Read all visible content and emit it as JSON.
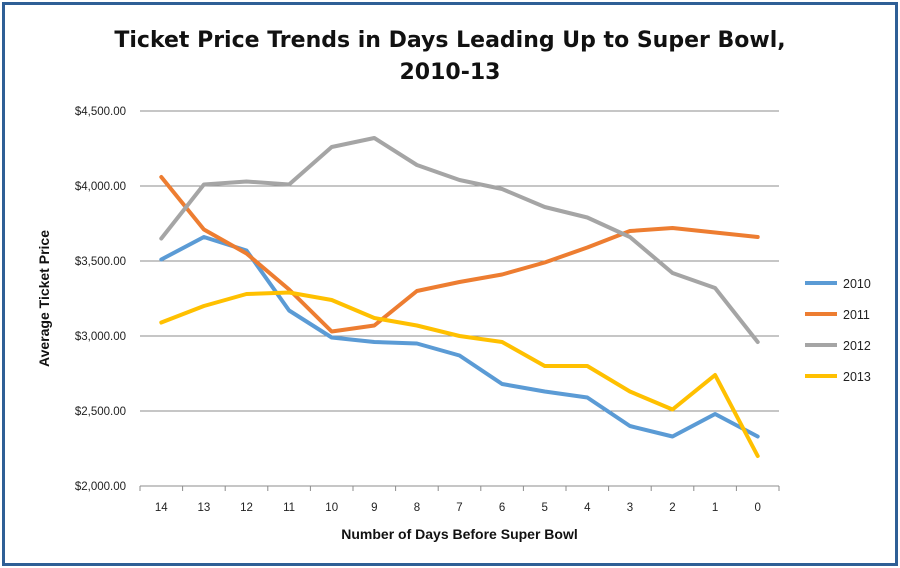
{
  "chart_data": {
    "type": "line",
    "title_line1": "Ticket Price Trends in Days Leading Up to Super Bowl,",
    "title_line2": "2010-13",
    "xlabel": "Number of Days Before Super Bowl",
    "ylabel": "Average Ticket Price",
    "categories": [
      "14",
      "13",
      "12",
      "11",
      "10",
      "9",
      "8",
      "7",
      "6",
      "5",
      "4",
      "3",
      "2",
      "1",
      "0"
    ],
    "ylim": [
      2000,
      4500
    ],
    "y_ticks": [
      {
        "value": 2000,
        "label": "$2,000.00"
      },
      {
        "value": 2500,
        "label": "$2,500.00"
      },
      {
        "value": 3000,
        "label": "$3,000.00"
      },
      {
        "value": 3500,
        "label": "$3,500.00"
      },
      {
        "value": 4000,
        "label": "$4,000.00"
      },
      {
        "value": 4500,
        "label": "$4,500.00"
      }
    ],
    "grid": true,
    "legend_position": "right",
    "series": [
      {
        "name": "2010",
        "color": "#5b9bd5",
        "values": [
          3510,
          3660,
          3570,
          3170,
          2990,
          2960,
          2950,
          2870,
          2680,
          2630,
          2590,
          2400,
          2330,
          2480,
          2330
        ]
      },
      {
        "name": "2011",
        "color": "#ed7d31",
        "values": [
          4060,
          3710,
          3550,
          3310,
          3030,
          3070,
          3300,
          3360,
          3410,
          3490,
          3590,
          3700,
          3720,
          3690,
          3660
        ]
      },
      {
        "name": "2012",
        "color": "#a5a5a5",
        "values": [
          3650,
          4010,
          4030,
          4010,
          4260,
          4320,
          4140,
          4040,
          3980,
          3860,
          3790,
          3660,
          3420,
          3320,
          2960
        ]
      },
      {
        "name": "2013",
        "color": "#ffc000",
        "values": [
          3090,
          3200,
          3280,
          3290,
          3240,
          3120,
          3070,
          3000,
          2960,
          2800,
          2800,
          2630,
          2510,
          2740,
          2200
        ]
      }
    ]
  }
}
